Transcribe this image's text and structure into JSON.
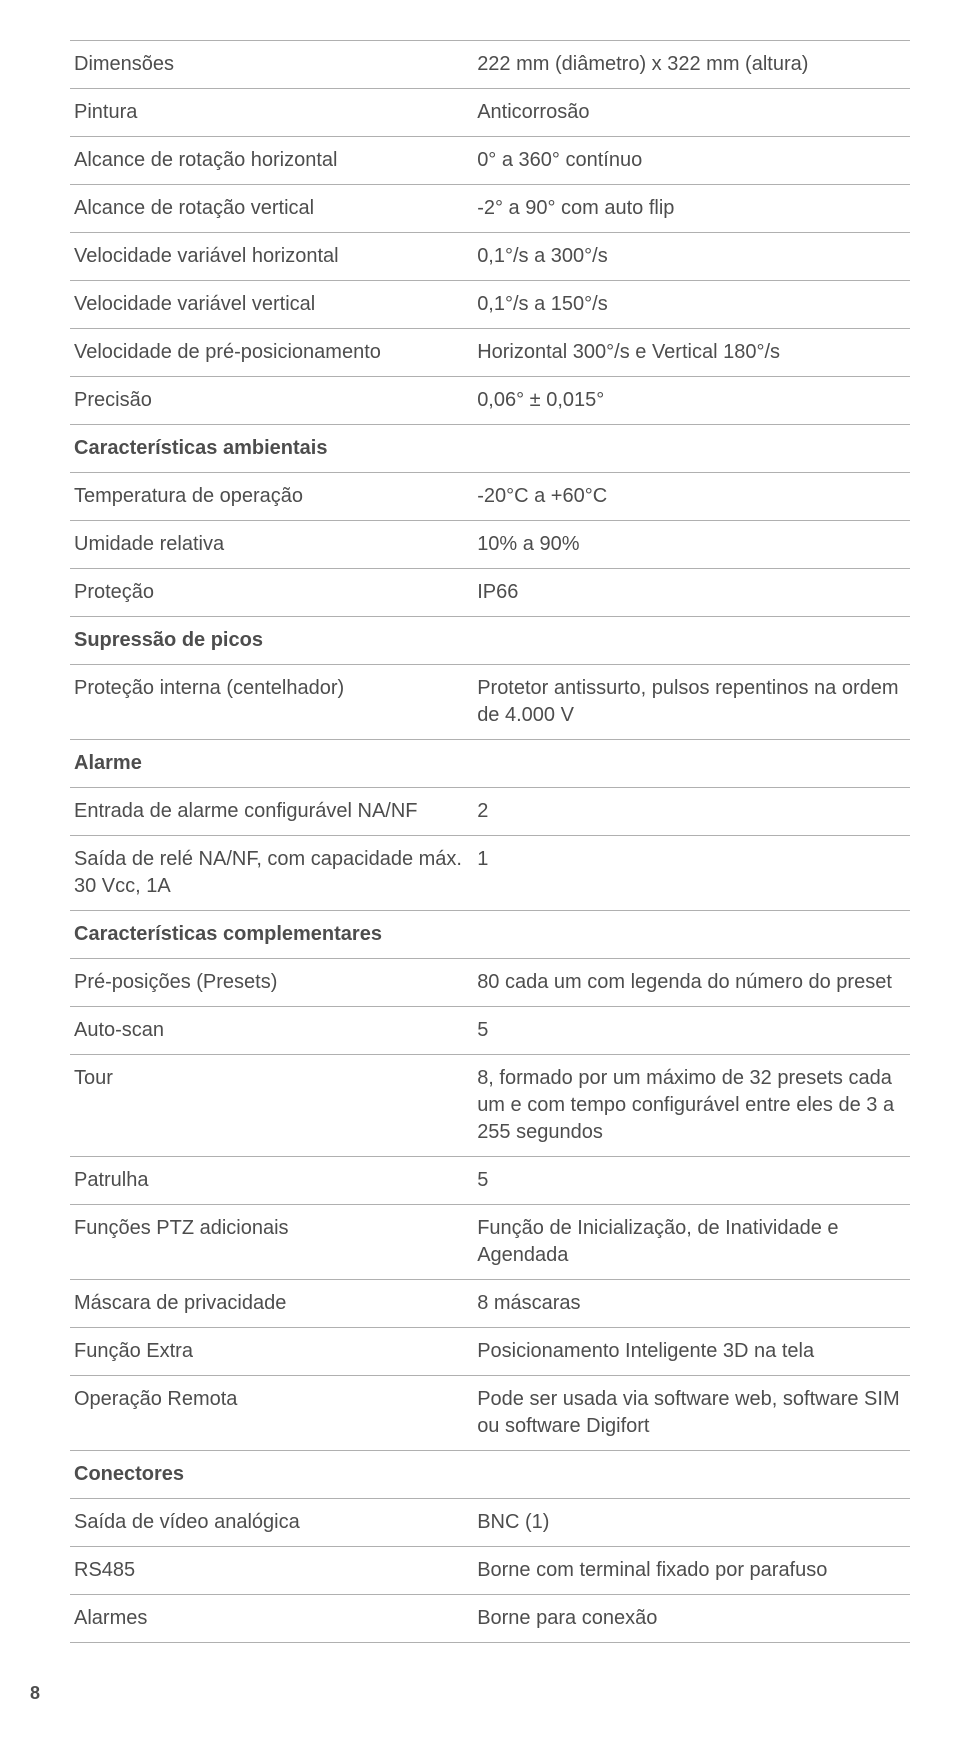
{
  "colors": {
    "text": "#4d4d4d",
    "border": "#b0b0b0",
    "background": "#ffffff"
  },
  "typography": {
    "family": "Helvetica Neue, Helvetica, Arial, sans-serif",
    "body_size_pt": 15,
    "section_weight": 700
  },
  "table": {
    "column_widths_pct": [
      48,
      52
    ],
    "rows": [
      {
        "type": "pair",
        "label": "Dimensões",
        "value": "222 mm (diâmetro) x 322 mm (altura)"
      },
      {
        "type": "pair",
        "label": "Pintura",
        "value": "Anticorrosão"
      },
      {
        "type": "pair",
        "label": "Alcance de rotação horizontal",
        "value": "0° a 360° contínuo"
      },
      {
        "type": "pair",
        "label": "Alcance de rotação vertical",
        "value": "-2° a 90° com auto flip"
      },
      {
        "type": "pair",
        "label": "Velocidade variável horizontal",
        "value": "0,1°/s a 300°/s"
      },
      {
        "type": "pair",
        "label": "Velocidade variável vertical",
        "value": "0,1°/s a 150°/s"
      },
      {
        "type": "pair",
        "label": "Velocidade de pré-posicionamento",
        "value": "Horizontal 300°/s e Vertical 180°/s"
      },
      {
        "type": "pair",
        "label": "Precisão",
        "value": "0,06° ± 0,015°"
      },
      {
        "type": "section",
        "label": "Características ambientais"
      },
      {
        "type": "pair",
        "label": "Temperatura de operação",
        "value": "-20°C a +60°C"
      },
      {
        "type": "pair",
        "label": "Umidade relativa",
        "value": "10% a 90%"
      },
      {
        "type": "pair",
        "label": "Proteção",
        "value": "IP66"
      },
      {
        "type": "section",
        "label": "Supressão de picos"
      },
      {
        "type": "pair",
        "label": "Proteção interna (centelhador)",
        "value": "Protetor antissurto, pulsos repentinos na ordem de 4.000 V"
      },
      {
        "type": "section",
        "label": "Alarme"
      },
      {
        "type": "pair",
        "label": "Entrada de alarme configurável NA/NF",
        "value": "2"
      },
      {
        "type": "pair",
        "label": "Saída de relé NA/NF, com capacidade máx. 30 Vcc, 1A",
        "value": "1"
      },
      {
        "type": "section",
        "label": "Características complementares"
      },
      {
        "type": "pair",
        "label": "Pré-posições (Presets)",
        "value": "80 cada um com legenda do número do preset"
      },
      {
        "type": "pair",
        "label": "Auto-scan",
        "value": "5"
      },
      {
        "type": "pair",
        "label": "Tour",
        "value": "8, formado por um máximo de 32 presets cada um e com tempo configurável entre eles de 3 a 255 segundos"
      },
      {
        "type": "pair",
        "label": "Patrulha",
        "value": "5"
      },
      {
        "type": "pair",
        "label": "Funções PTZ adicionais",
        "value": "Função de Inicialização, de Inatividade e Agendada"
      },
      {
        "type": "pair",
        "label": "Máscara de privacidade",
        "value": "8 máscaras"
      },
      {
        "type": "pair",
        "label": "Função Extra",
        "value": "Posicionamento Inteligente 3D na tela"
      },
      {
        "type": "pair",
        "label": "Operação Remota",
        "value": "Pode ser usada via software web, software SIM ou software Digifort"
      },
      {
        "type": "section",
        "label": "Conectores"
      },
      {
        "type": "pair",
        "label": "Saída de vídeo analógica",
        "value": "BNC (1)"
      },
      {
        "type": "pair",
        "label": "RS485",
        "value": "Borne com terminal fixado por parafuso"
      },
      {
        "type": "pair",
        "label": "Alarmes",
        "value": "Borne para conexão"
      }
    ]
  },
  "page_number": "8"
}
